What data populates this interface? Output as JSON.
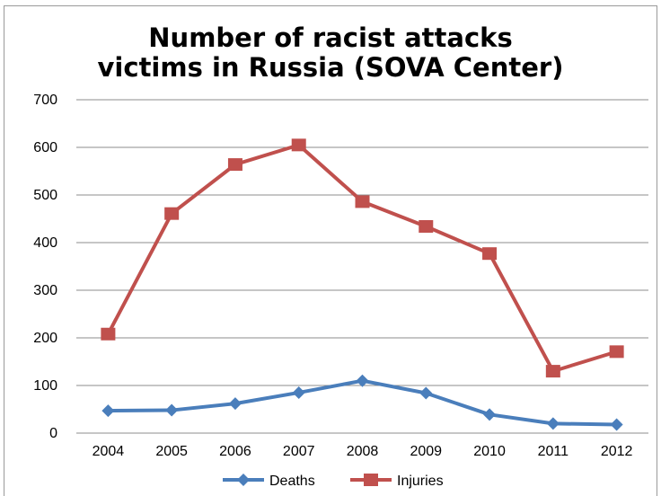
{
  "chart_data": {
    "type": "line",
    "title_line1": "Number of racist attacks",
    "title_line2": "victims in Russia (SOVA Center)",
    "x": [
      "2004",
      "2005",
      "2006",
      "2007",
      "2008",
      "2009",
      "2010",
      "2011",
      "2012"
    ],
    "ylim": [
      0,
      700
    ],
    "yticks": [
      0,
      100,
      200,
      300,
      400,
      500,
      600,
      700
    ],
    "grid": true,
    "legend_position": "bottom",
    "series": [
      {
        "name": "Deaths",
        "color": "#4a7ebb",
        "marker": "diamond",
        "values": [
          47,
          48,
          62,
          85,
          110,
          84,
          39,
          20,
          18
        ]
      },
      {
        "name": "Injuries",
        "color": "#c0504d",
        "marker": "square",
        "values": [
          208,
          461,
          564,
          605,
          486,
          434,
          377,
          130,
          171
        ]
      }
    ]
  }
}
